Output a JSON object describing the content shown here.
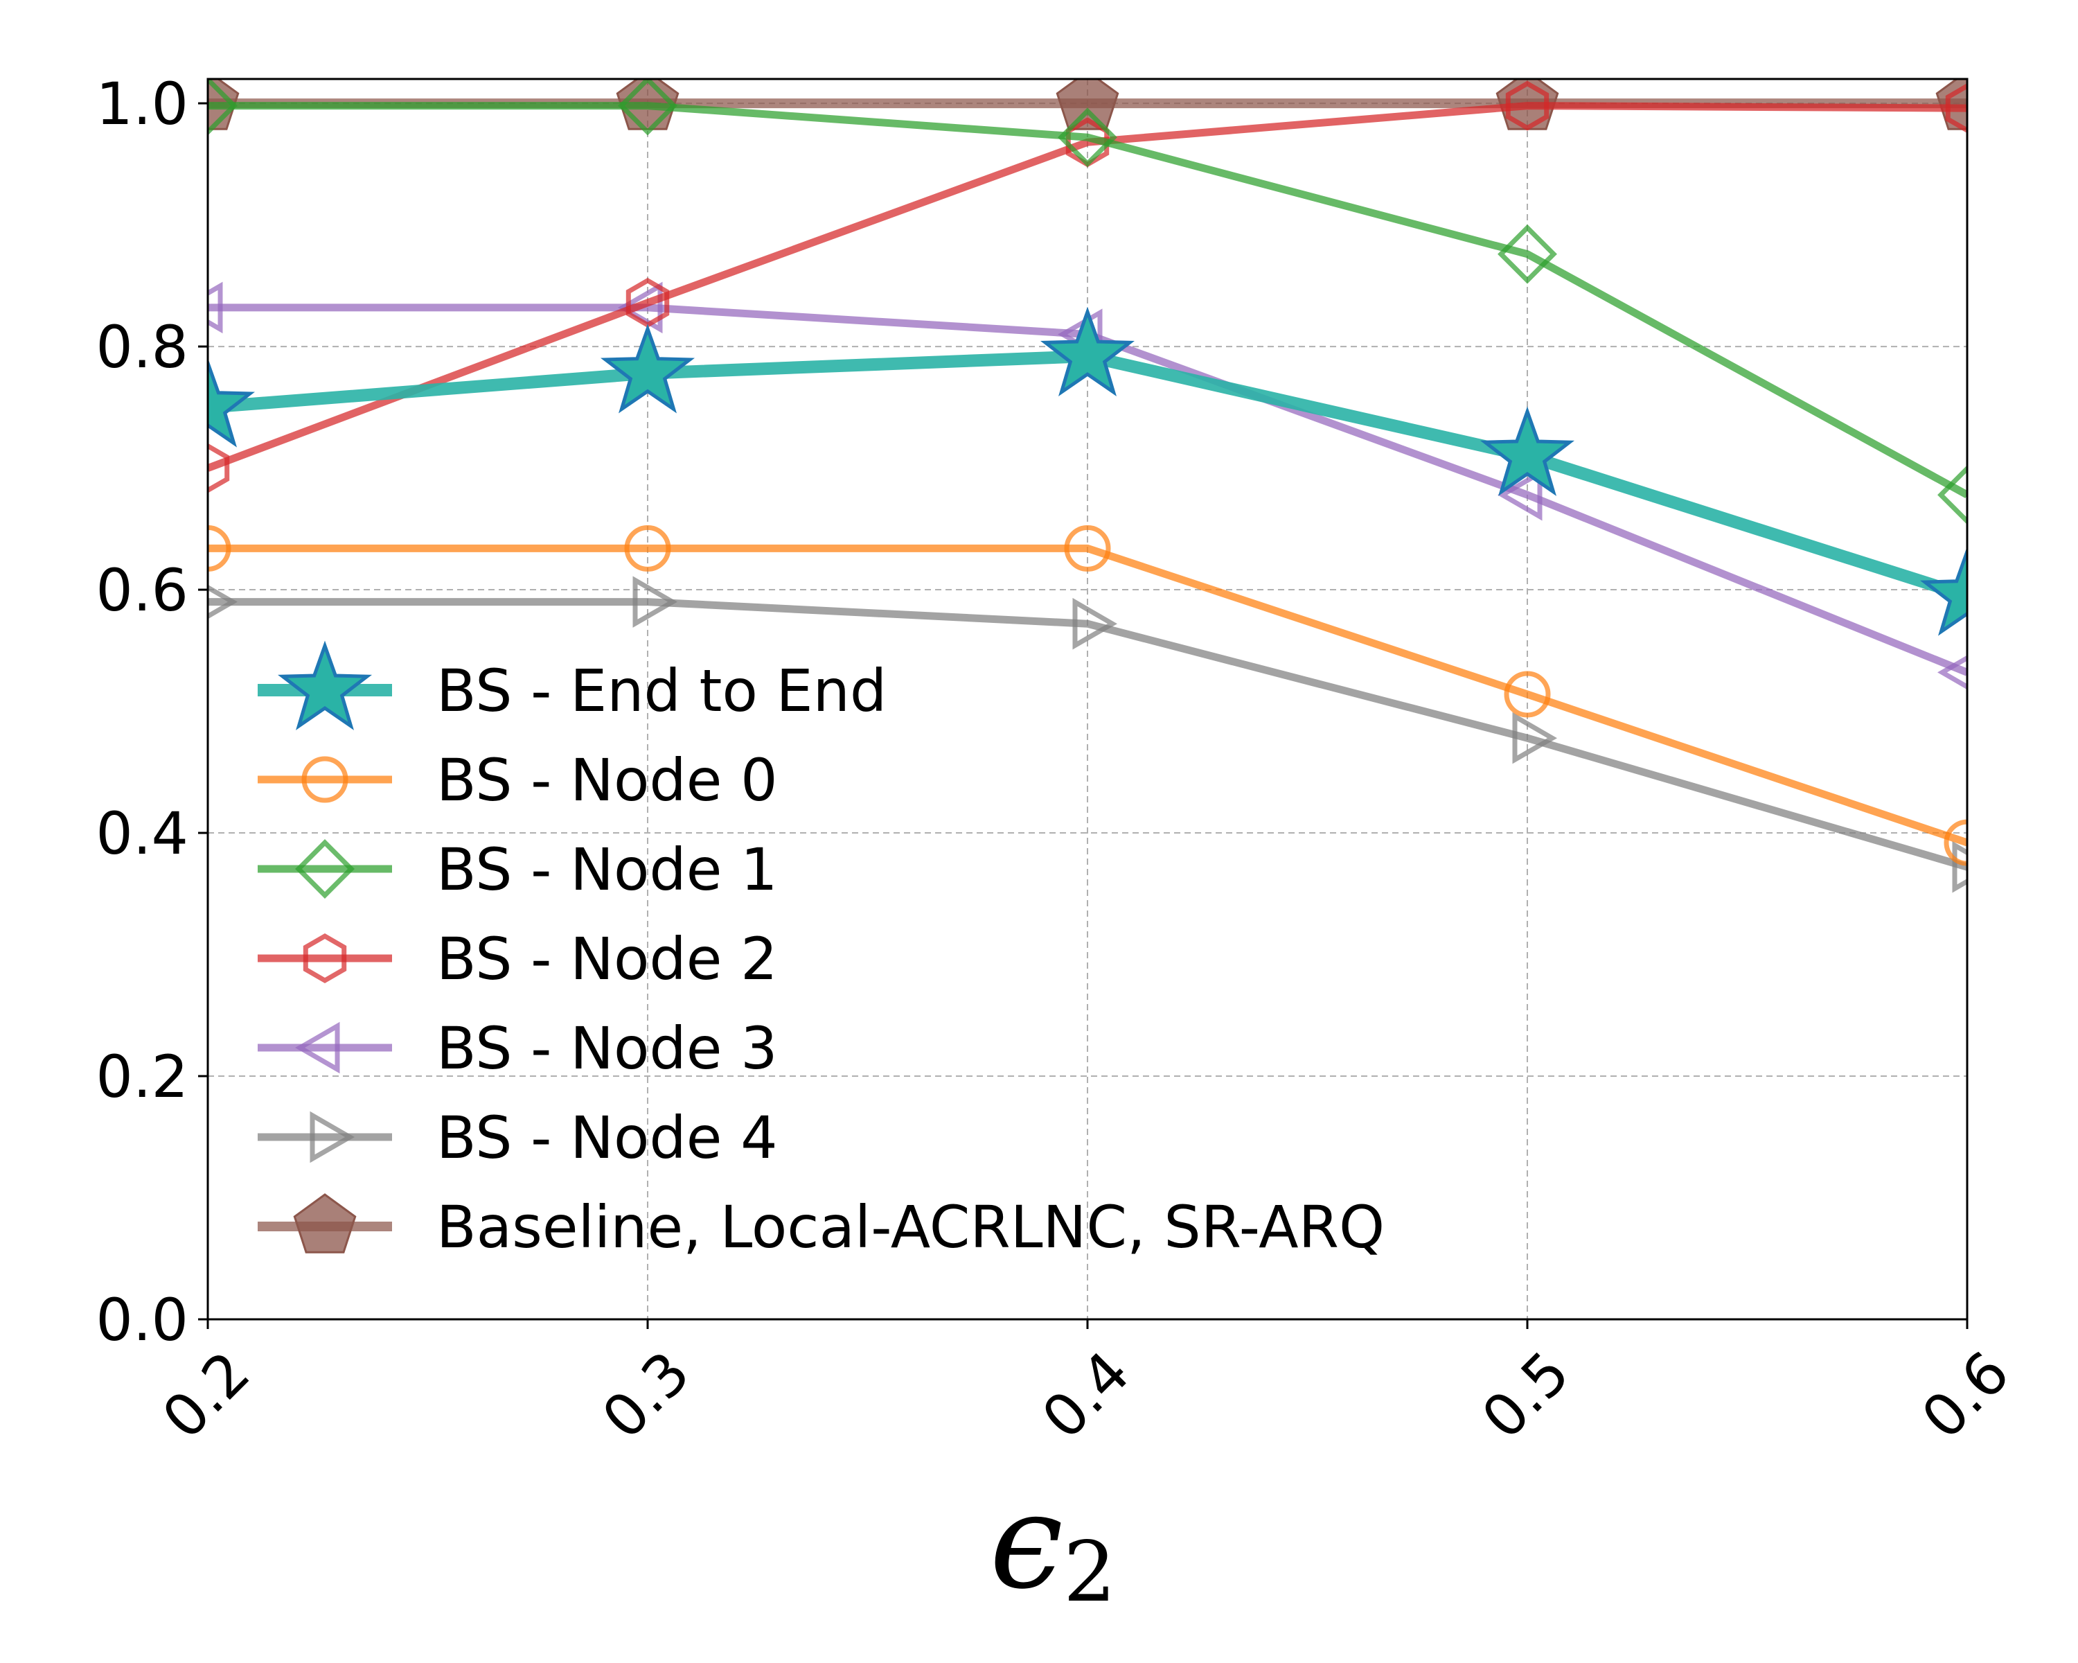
{
  "chart_data": {
    "type": "line",
    "title": "",
    "xlabel": "ϵ2",
    "xlabel_main": "ϵ",
    "xlabel_sub": "2",
    "ylabel": "",
    "x": [
      0.2,
      0.3,
      0.4,
      0.5,
      0.6
    ],
    "x_tick_labels": [
      "0.2",
      "0.3",
      "0.4",
      "0.5",
      "0.6"
    ],
    "y_tick_labels": [
      "0.0",
      "0.2",
      "0.4",
      "0.6",
      "0.8",
      "1.0"
    ],
    "xlim": [
      0.2,
      0.6
    ],
    "ylim": [
      0.0,
      1.02
    ],
    "grid": true,
    "legend_position": "center-left",
    "series": [
      {
        "name": "BS - End to End",
        "marker": "star",
        "color": "#2ab3a6",
        "edge": "#1f77b4",
        "values": [
          0.75,
          0.778,
          0.792,
          0.71,
          0.595
        ]
      },
      {
        "name": "BS - Node 0",
        "marker": "circle",
        "color": "#ff7f0e",
        "values": [
          0.634,
          0.634,
          0.634,
          0.514,
          0.392
        ]
      },
      {
        "name": "BS - Node 1",
        "marker": "diamond",
        "color": "#2ca02c",
        "values": [
          0.998,
          0.998,
          0.972,
          0.876,
          0.678
        ]
      },
      {
        "name": "BS - Node 2",
        "marker": "hexagon",
        "color": "#d62728",
        "values": [
          0.7,
          0.836,
          0.968,
          0.998,
          0.996
        ]
      },
      {
        "name": "BS - Node 3",
        "marker": "triangle-left",
        "color": "#9467bd",
        "values": [
          0.832,
          0.832,
          0.81,
          0.678,
          0.532
        ]
      },
      {
        "name": "BS - Node 4",
        "marker": "triangle-right",
        "color": "#7f7f7f",
        "values": [
          0.59,
          0.59,
          0.572,
          0.478,
          0.372
        ]
      },
      {
        "name": "Baseline, Local-ACRLNC, SR-ARQ",
        "marker": "pentagon",
        "color": "#8c564b",
        "values": [
          1.0,
          1.0,
          1.0,
          1.0,
          1.0
        ]
      }
    ]
  }
}
